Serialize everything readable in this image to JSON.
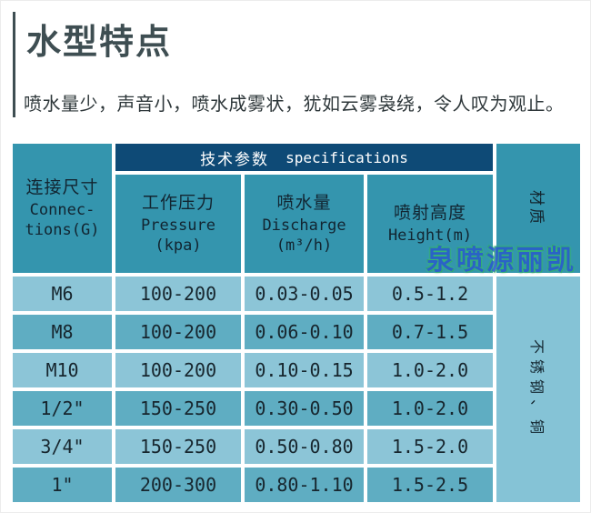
{
  "header": {
    "title": "水型特点",
    "description": "喷水量少，声音小，喷水成雾状，犹如云雾袅绕，令人叹为观止。"
  },
  "watermark": "泉喷源丽凯",
  "table": {
    "spec_band": {
      "zh": "技术参数",
      "en": "specifications"
    },
    "col_connection": {
      "zh": "连接尺寸",
      "en_line1": "Connec-",
      "en_line2": "tions(G)"
    },
    "col_pressure": {
      "zh": "工作压力",
      "en_line1": "Pressure",
      "en_line2": "(kpa)"
    },
    "col_discharge": {
      "zh": "喷水量",
      "en_line1": "Discharge",
      "en_line2": "(m³/h)"
    },
    "col_height": {
      "zh": "喷射高度",
      "en_line1": "Height(m)"
    },
    "material_header": "材质",
    "material_value": "不锈钢、铜",
    "rows": [
      {
        "connection": "M6",
        "pressure": "100-200",
        "discharge": "0.03-0.05",
        "height": "0.5-1.2"
      },
      {
        "connection": "M8",
        "pressure": "100-200",
        "discharge": "0.06-0.10",
        "height": "0.7-1.5"
      },
      {
        "connection": "M10",
        "pressure": "100-200",
        "discharge": "0.10-0.15",
        "height": "1.0-2.0"
      },
      {
        "connection": "1/2\"",
        "pressure": "150-250",
        "discharge": "0.30-0.50",
        "height": "1.0-2.0"
      },
      {
        "connection": "3/4\"",
        "pressure": "150-250",
        "discharge": "0.50-0.80",
        "height": "1.5-2.0"
      },
      {
        "connection": "1\"",
        "pressure": "200-300",
        "discharge": "0.80-1.10",
        "height": "1.5-2.5"
      }
    ]
  },
  "colors": {
    "header_teal": "#3495ae",
    "band_navy": "#0e4a76",
    "row_light": "#8cc5d7",
    "row_dark": "#5fadc2",
    "material_body": "#85c3d6",
    "title_text": "#3e4e52",
    "watermark_blue": "#2a5ec9",
    "watermark_green": "#3bbd78"
  }
}
